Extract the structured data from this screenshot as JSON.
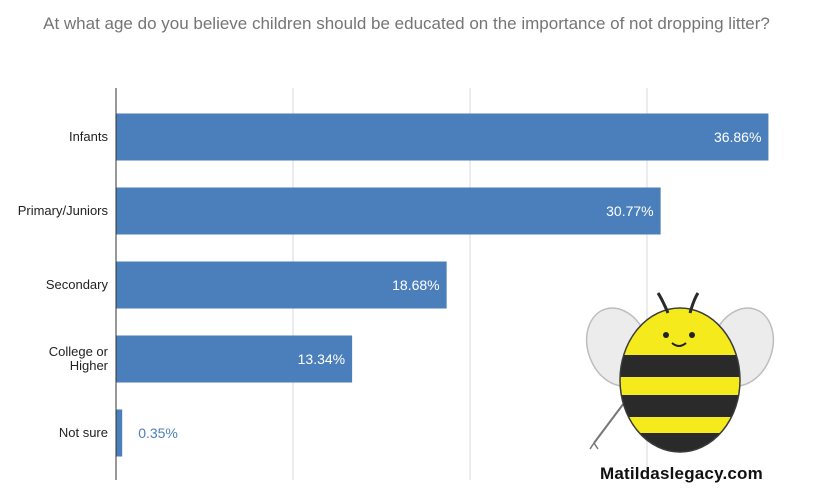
{
  "chart_title": "At what age do you believe children should be educated on the importance of not dropping litter?",
  "watermark": "Matildaslegacy.com",
  "mascot_icon": "bee-mascot-icon",
  "colors": {
    "bar": "#4a7fbc",
    "grid": "#d9d9d9",
    "axis": "#333333",
    "title": "#757575"
  },
  "chart_data": {
    "type": "bar",
    "orientation": "horizontal",
    "title": "At what age do you believe children should be educated on the importance of not dropping litter?",
    "categories": [
      "Infants",
      "Primary/Juniors",
      "Secondary",
      "College or Higher",
      "Not sure"
    ],
    "category_lines": [
      [
        "Infants"
      ],
      [
        "Primary/Juniors"
      ],
      [
        "Secondary"
      ],
      [
        "College or",
        "Higher"
      ],
      [
        "Not sure"
      ]
    ],
    "values": [
      36.86,
      30.77,
      18.68,
      13.34,
      0.35
    ],
    "value_labels": [
      "36.86%",
      "30.77%",
      "18.68%",
      "13.34%",
      "0.35%"
    ],
    "xlim": [
      0,
      40
    ],
    "gridlines": [
      0,
      10,
      20,
      30
    ],
    "grid": true,
    "xlabel": "",
    "ylabel": "",
    "legend": "none"
  }
}
